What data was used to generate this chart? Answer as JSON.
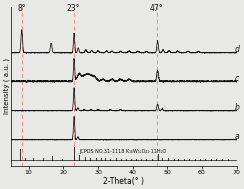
{
  "title": "",
  "xlabel": "2-Theta(° )",
  "ylabel": "Intensity ( a.u. )",
  "xlim": [
    5,
    70
  ],
  "background_color": "#e8e8e4",
  "line_color": "#111111",
  "dashed_lines": [
    8,
    23,
    47
  ],
  "dashed_color": "#ff7777",
  "annotations": [
    "8°",
    "23°",
    "47°"
  ],
  "curve_labels": [
    "a",
    "b",
    "c",
    "d"
  ],
  "reference_label": "JCPDS NO.31-1118 K₁₆W₁₂O₄₁·11H₂O",
  "ref_peaks": [
    7.5,
    9.0,
    11.2,
    14.2,
    16.8,
    19.5,
    23.1,
    24.5,
    26.2,
    27.8,
    29.3,
    30.8,
    32.1,
    33.6,
    35.2,
    36.5,
    38.0,
    39.5,
    41.0,
    42.5,
    44.0,
    45.5,
    47.2,
    48.6,
    50.1,
    51.8,
    53.2,
    54.8,
    56.3,
    57.9,
    59.5,
    61.0,
    62.5,
    64.0,
    65.8,
    67.5
  ],
  "ref_heights": [
    0.85,
    0.2,
    0.15,
    0.18,
    0.3,
    0.12,
    1.0,
    0.4,
    0.25,
    0.2,
    0.15,
    0.18,
    0.15,
    0.12,
    0.14,
    0.1,
    0.12,
    0.1,
    0.12,
    0.1,
    0.08,
    0.12,
    0.5,
    0.2,
    0.15,
    0.12,
    0.1,
    0.12,
    0.08,
    0.1,
    0.08,
    0.07,
    0.08,
    0.06,
    0.07,
    0.06
  ]
}
